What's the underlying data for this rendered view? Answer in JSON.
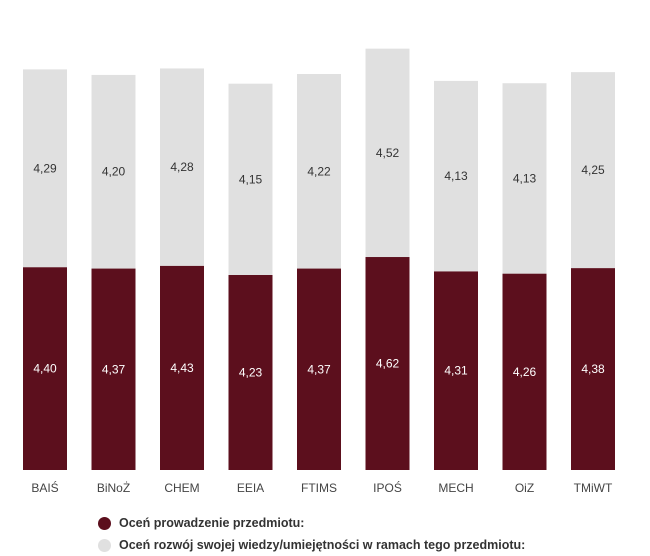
{
  "chart_data": {
    "type": "bar",
    "stacked": true,
    "categories": [
      "BAIŚ",
      "BiNoŻ",
      "CHEM",
      "EEIA",
      "FTIMS",
      "IPOŚ",
      "MECH",
      "OiZ",
      "TMiWT"
    ],
    "series": [
      {
        "name": "Oceń prowadzenie przedmiotu:",
        "color": "#5c0f1d",
        "values": [
          4.4,
          4.37,
          4.43,
          4.23,
          4.37,
          4.62,
          4.31,
          4.26,
          4.38
        ],
        "labels": [
          "4,40",
          "4,37",
          "4,43",
          "4,23",
          "4,37",
          "4,62",
          "4,31",
          "4,26",
          "4,38"
        ]
      },
      {
        "name": "Oceń rozwój swojej wiedzy/umiejętności w ramach tego przedmiotu:",
        "color": "#e0e0e0",
        "values": [
          4.29,
          4.2,
          4.28,
          4.15,
          4.22,
          4.52,
          4.13,
          4.13,
          4.25
        ],
        "labels": [
          "4,29",
          "4,20",
          "4,28",
          "4,15",
          "4,22",
          "4,52",
          "4,13",
          "4,13",
          "4,25"
        ]
      }
    ],
    "legend_position": "bottom",
    "grid": false
  }
}
